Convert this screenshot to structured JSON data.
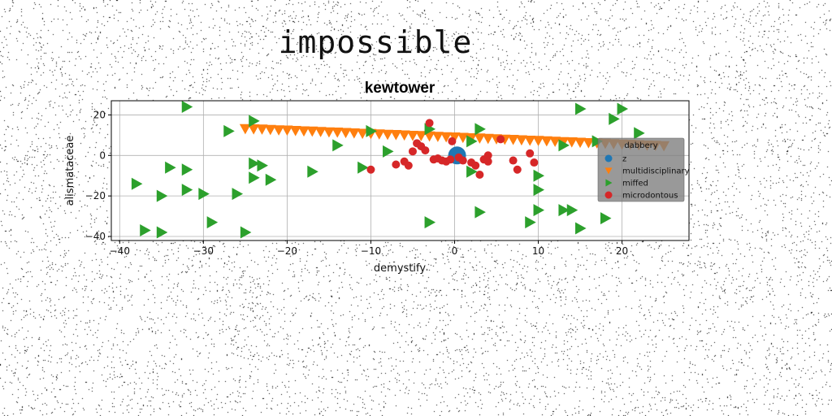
{
  "page": {
    "title": "impossible"
  },
  "chart_data": {
    "type": "scatter",
    "title": "kewtower",
    "xlabel": "demystify",
    "ylabel": "alismataceae",
    "xlim": [
      -41,
      28
    ],
    "ylim": [
      -42,
      27
    ],
    "xticks": [
      -40,
      -30,
      -20,
      -10,
      0,
      10,
      20
    ],
    "yticks": [
      -40,
      -20,
      0,
      20
    ],
    "grid": true,
    "legend": {
      "title": "dabbery",
      "placement": "right"
    },
    "series": [
      {
        "name": "z",
        "marker": "circle",
        "color": "#1f77b4",
        "points": [
          [
            0.3,
            0.0
          ]
        ]
      },
      {
        "name": "multidisciplinary",
        "marker": "triangle-down",
        "color": "#ff7f0e",
        "points": [
          [
            -25.0,
            13.2
          ],
          [
            -24.0,
            13.1
          ],
          [
            -23.0,
            13.0
          ],
          [
            -22.0,
            12.8
          ],
          [
            -21.0,
            12.6
          ],
          [
            -20.0,
            12.5
          ],
          [
            -19.0,
            12.3
          ],
          [
            -18.0,
            12.1
          ],
          [
            -17.0,
            12.0
          ],
          [
            -16.0,
            11.8
          ],
          [
            -15.0,
            11.6
          ],
          [
            -14.0,
            11.5
          ],
          [
            -13.0,
            11.3
          ],
          [
            -12.0,
            11.1
          ],
          [
            -11.0,
            10.9
          ],
          [
            -10.0,
            10.8
          ],
          [
            -9.0,
            10.6
          ],
          [
            -8.0,
            10.4
          ],
          [
            -7.0,
            10.3
          ],
          [
            -6.0,
            10.1
          ],
          [
            -5.0,
            9.9
          ],
          [
            -4.0,
            9.8
          ],
          [
            -3.0,
            9.6
          ],
          [
            -2.0,
            9.4
          ],
          [
            -1.0,
            9.2
          ],
          [
            0.0,
            9.1
          ],
          [
            1.0,
            8.9
          ],
          [
            2.0,
            8.7
          ],
          [
            3.0,
            8.6
          ],
          [
            4.0,
            8.4
          ],
          [
            5.0,
            8.2
          ],
          [
            6.0,
            8.0
          ],
          [
            7.0,
            7.9
          ],
          [
            8.0,
            7.7
          ],
          [
            9.0,
            7.5
          ],
          [
            10.0,
            7.4
          ],
          [
            11.0,
            7.2
          ],
          [
            12.0,
            7.0
          ],
          [
            13.0,
            6.8
          ],
          [
            14.0,
            6.7
          ],
          [
            15.0,
            6.5
          ],
          [
            16.0,
            6.3
          ],
          [
            17.0,
            6.2
          ],
          [
            18.0,
            6.0
          ],
          [
            19.0,
            5.8
          ],
          [
            20.0,
            5.6
          ],
          [
            21.0,
            5.5
          ],
          [
            22.0,
            5.3
          ],
          [
            23.0,
            5.1
          ],
          [
            24.0,
            5.0
          ],
          [
            25.0,
            4.8
          ]
        ]
      },
      {
        "name": "miffed",
        "marker": "triangle-right",
        "color": "#2ca02c",
        "points": [
          [
            -32,
            24
          ],
          [
            -27,
            12
          ],
          [
            -24,
            17
          ],
          [
            -10,
            12
          ],
          [
            -3,
            13
          ],
          [
            3,
            13
          ],
          [
            15,
            23
          ],
          [
            19,
            18
          ],
          [
            20,
            23
          ],
          [
            22,
            11
          ],
          [
            17,
            7
          ],
          [
            13,
            5
          ],
          [
            -14,
            5
          ],
          [
            -8,
            2
          ],
          [
            2,
            7
          ],
          [
            -38,
            -14
          ],
          [
            -35,
            -20
          ],
          [
            -34,
            -6
          ],
          [
            -32,
            -7
          ],
          [
            -32,
            -17
          ],
          [
            -30,
            -19
          ],
          [
            -26,
            -19
          ],
          [
            -24,
            -4
          ],
          [
            -24,
            -11
          ],
          [
            -23,
            -5
          ],
          [
            -22,
            -12
          ],
          [
            -17,
            -8
          ],
          [
            -11,
            -6
          ],
          [
            2,
            -8
          ],
          [
            10,
            -10
          ],
          [
            10,
            -17
          ],
          [
            -37,
            -37
          ],
          [
            -35,
            -38
          ],
          [
            -29,
            -33
          ],
          [
            -25,
            -38
          ],
          [
            -3,
            -33
          ],
          [
            3,
            -28
          ],
          [
            9,
            -33
          ],
          [
            10,
            -27
          ],
          [
            13,
            -27
          ],
          [
            14,
            -27
          ],
          [
            15,
            -36
          ],
          [
            18,
            -31
          ]
        ]
      },
      {
        "name": "microdontous",
        "marker": "circle",
        "color": "#d62728",
        "points": [
          [
            -10.0,
            -7.0
          ],
          [
            -7.0,
            -4.5
          ],
          [
            -6.0,
            -3.0
          ],
          [
            -5.5,
            -5.0
          ],
          [
            -5.0,
            2.0
          ],
          [
            -4.5,
            6.0
          ],
          [
            -4.0,
            4.5
          ],
          [
            -3.5,
            2.5
          ],
          [
            -3.0,
            16.0
          ],
          [
            -2.5,
            -2.0
          ],
          [
            -2.0,
            -1.5
          ],
          [
            -1.5,
            -2.5
          ],
          [
            -1.0,
            -3.0
          ],
          [
            -0.5,
            -2.0
          ],
          [
            -0.3,
            7.0
          ],
          [
            0.5,
            -1.0
          ],
          [
            1.0,
            -2.5
          ],
          [
            2.0,
            -3.5
          ],
          [
            2.5,
            -5.0
          ],
          [
            3.0,
            -9.5
          ],
          [
            3.5,
            -2.0
          ],
          [
            4.0,
            -3.0
          ],
          [
            4.0,
            0.0
          ],
          [
            5.5,
            8.0
          ],
          [
            7.0,
            -2.5
          ],
          [
            7.5,
            -7.0
          ],
          [
            9.0,
            1.0
          ],
          [
            9.5,
            -3.5
          ]
        ]
      }
    ]
  }
}
